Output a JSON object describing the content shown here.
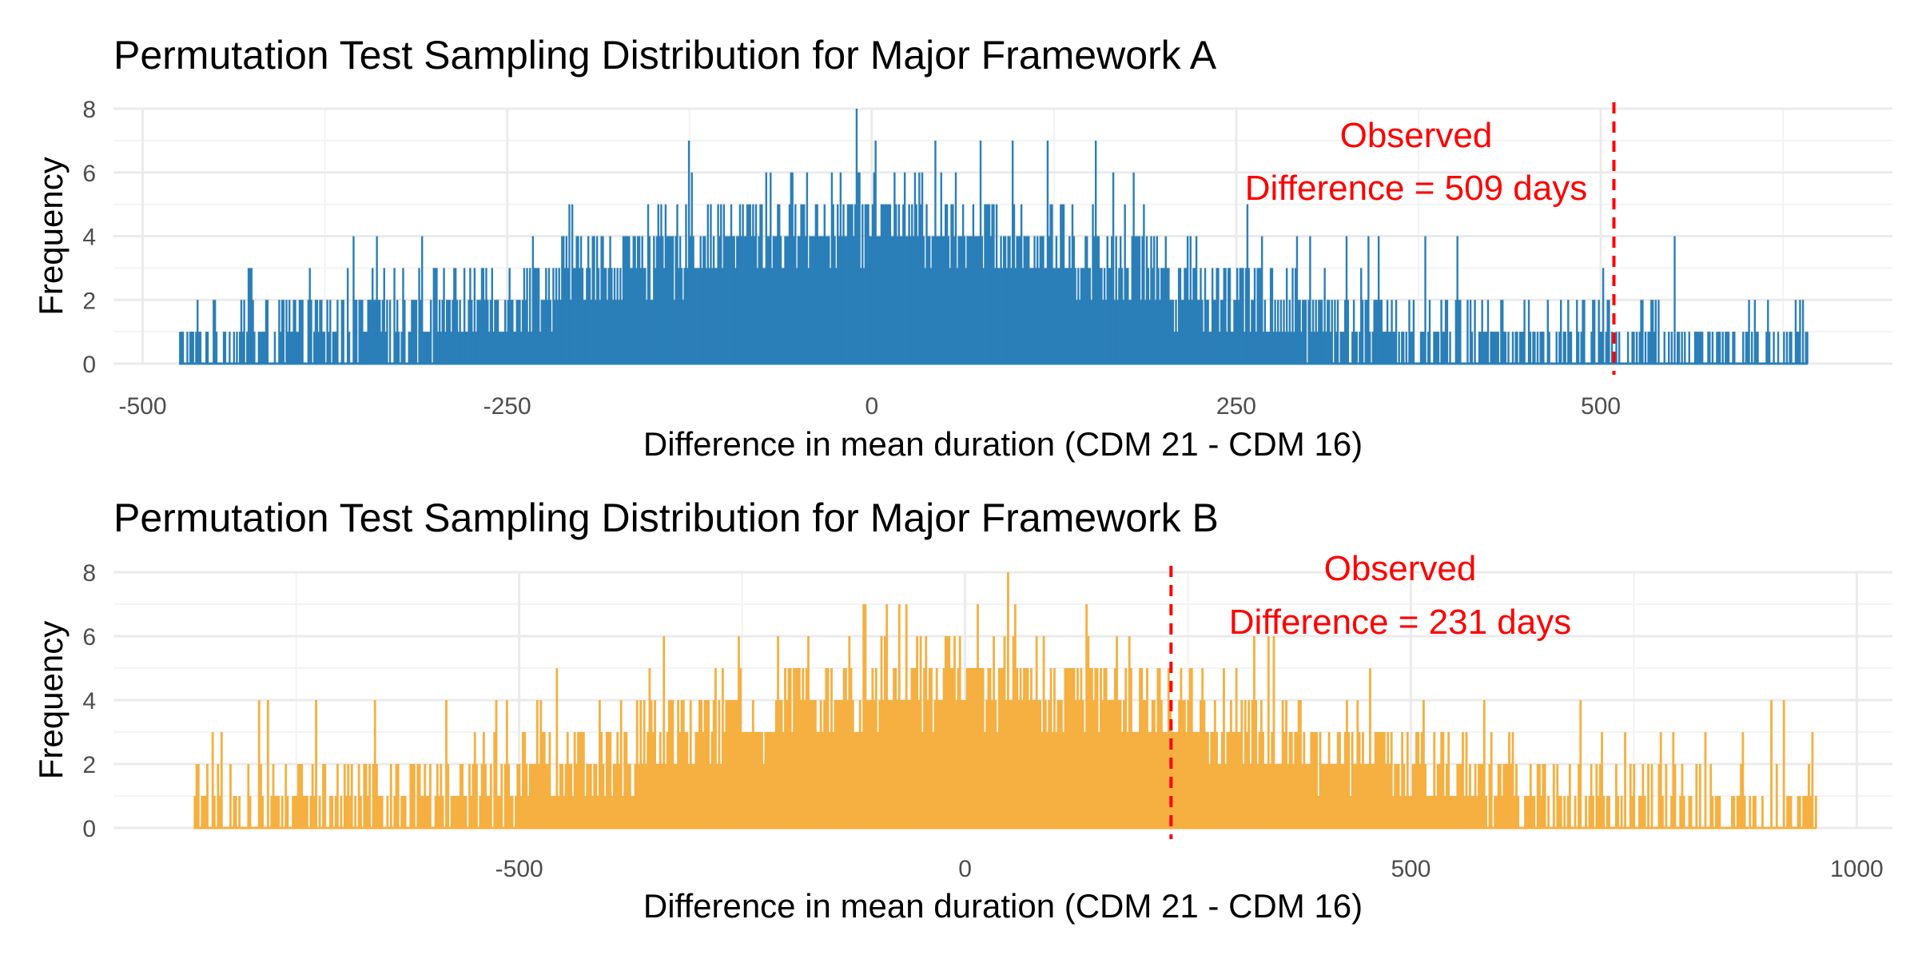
{
  "chart_data": [
    {
      "type": "bar",
      "panel": "A",
      "title": "Permutation Test Sampling Distribution for Major Framework A",
      "xlabel": "Difference in mean duration (CDM 21 - CDM 16)",
      "ylabel": "Frequency",
      "xlim": [
        -520,
        700
      ],
      "ylim": [
        0,
        8
      ],
      "x_ticks": [
        -500,
        -250,
        0,
        250,
        500
      ],
      "x_tick_labels": [
        "-500",
        "-250",
        "0",
        "250",
        "500"
      ],
      "y_ticks": [
        0,
        2,
        4,
        6,
        8
      ],
      "y_tick_labels": [
        "0",
        "2",
        "4",
        "6",
        "8"
      ],
      "bar_color": "#2b7fb8",
      "grid": true,
      "observed": {
        "value": 509,
        "label_line1": "Observed",
        "label_line2": "Difference = 509  days",
        "color": "#ff0000"
      },
      "distribution": {
        "center": 0,
        "spread": 195,
        "peak": 8,
        "min": -475,
        "max": 642,
        "num_bins": 1117
      }
    },
    {
      "type": "bar",
      "panel": "B",
      "title": "Permutation Test Sampling Distribution for Major Framework B",
      "xlabel": "Difference in mean duration (CDM 21 - CDM 16)",
      "ylabel": "Frequency",
      "xlim": [
        -955,
        1040
      ],
      "ylim": [
        0,
        8
      ],
      "x_ticks": [
        -500,
        0,
        500,
        1000
      ],
      "x_tick_labels": [
        "-500",
        "0",
        "500",
        "1000"
      ],
      "y_ticks": [
        0,
        2,
        4,
        6,
        8
      ],
      "y_tick_labels": [
        "0",
        "2",
        "4",
        "6",
        "8"
      ],
      "bar_color": "#f5b041",
      "grid": true,
      "observed": {
        "value": 231,
        "label_line1": "Observed",
        "label_line2": "Difference = 231  days",
        "color": "#ff0000"
      },
      "distribution": {
        "center": 10,
        "spread": 340,
        "peak": 8,
        "min": -865,
        "max": 955,
        "num_bins": 910
      }
    }
  ]
}
